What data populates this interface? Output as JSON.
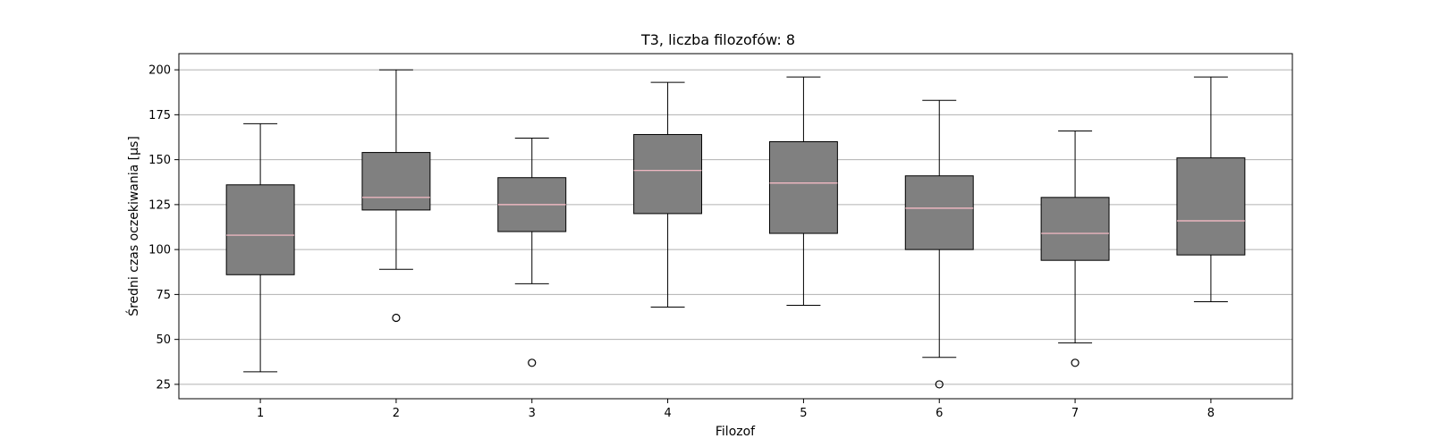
{
  "chart_data": {
    "type": "boxplot",
    "title": "T3, liczba filozofów: 8",
    "xlabel": "Filozof",
    "ylabel": "Średni czas oczekiwania [µs]",
    "ylim": [
      17,
      209
    ],
    "yticks": [
      25,
      50,
      75,
      100,
      125,
      150,
      175,
      200
    ],
    "grid": "horizontal",
    "categories": [
      "1",
      "2",
      "3",
      "4",
      "5",
      "6",
      "7",
      "8"
    ],
    "boxes": [
      {
        "whisker_low": 32,
        "q1": 86,
        "median": 108,
        "q3": 136,
        "whisker_high": 170,
        "outliers": []
      },
      {
        "whisker_low": 89,
        "q1": 122,
        "median": 129,
        "q3": 154,
        "whisker_high": 200,
        "outliers": [
          62
        ]
      },
      {
        "whisker_low": 81,
        "q1": 110,
        "median": 125,
        "q3": 140,
        "whisker_high": 162,
        "outliers": [
          37
        ]
      },
      {
        "whisker_low": 68,
        "q1": 120,
        "median": 144,
        "q3": 164,
        "whisker_high": 193,
        "outliers": []
      },
      {
        "whisker_low": 69,
        "q1": 109,
        "median": 137,
        "q3": 160,
        "whisker_high": 196,
        "outliers": []
      },
      {
        "whisker_low": 40,
        "q1": 100,
        "median": 123,
        "q3": 141,
        "whisker_high": 183,
        "outliers": [
          25
        ]
      },
      {
        "whisker_low": 48,
        "q1": 94,
        "median": 109,
        "q3": 129,
        "whisker_high": 166,
        "outliers": [
          37
        ]
      },
      {
        "whisker_low": 71,
        "q1": 97,
        "median": 116,
        "q3": 151,
        "whisker_high": 196,
        "outliers": []
      }
    ],
    "colors": {
      "box_fill": "#808080",
      "box_edge": "#000000",
      "median": "#ffc0cb",
      "grid": "#b0b0b0"
    }
  }
}
